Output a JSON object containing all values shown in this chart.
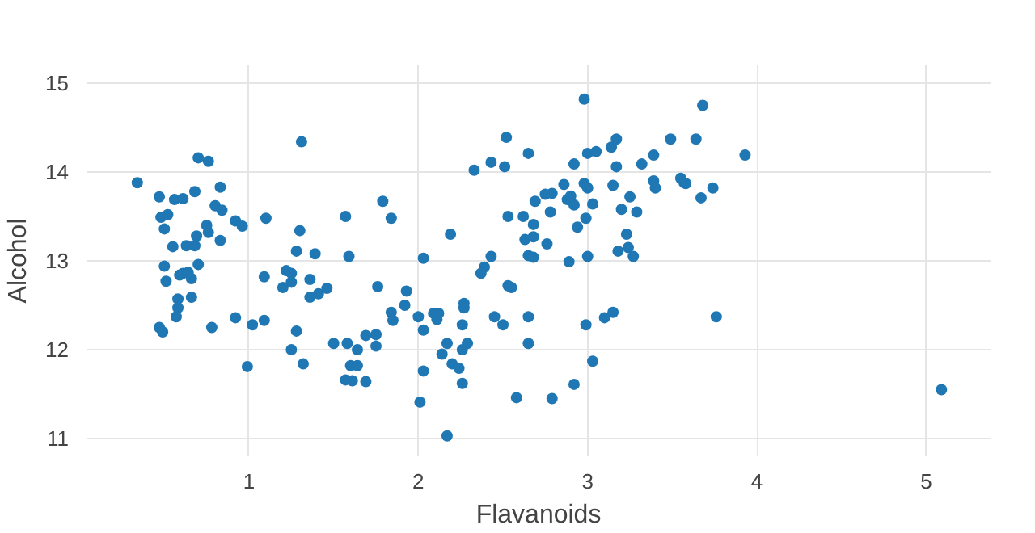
{
  "chart_data": {
    "type": "scatter",
    "xlabel": "Flavanoids",
    "ylabel": "Alcohol",
    "xlim": [
      0.04,
      5.38
    ],
    "ylim": [
      10.8,
      15.2
    ],
    "xticks": [
      1,
      2,
      3,
      4,
      5
    ],
    "yticks": [
      11,
      12,
      13,
      14,
      15
    ],
    "grid": true,
    "marker": "circle",
    "series": [
      {
        "color": "#1f77b4",
        "x": [
          0.7,
          0.76,
          0.34,
          0.47,
          0.56,
          0.61,
          0.68,
          0.83,
          0.48,
          0.52,
          0.5,
          0.75,
          0.8,
          0.84,
          0.92,
          0.96,
          0.76,
          0.55,
          0.63,
          0.68,
          0.69,
          0.83,
          1.1,
          1.3,
          1.28,
          1.39,
          1.57,
          1.79,
          1.84,
          1.59,
          0.5,
          0.61,
          0.7,
          1.09,
          1.22,
          0.59,
          0.64,
          0.66,
          0.51,
          1.25,
          1.2,
          1.25,
          1.36,
          1.36,
          1.41,
          1.46,
          1.76,
          1.93,
          0.58,
          0.58,
          0.57,
          0.66,
          0.92,
          1.02,
          1.09,
          0.78,
          0.47,
          0.49,
          1.28,
          1.25,
          1.32,
          0.99,
          1.5,
          1.58,
          1.64,
          1.69,
          1.75,
          1.75,
          1.6,
          1.64,
          1.57,
          1.61,
          1.69,
          1.84,
          1.85,
          1.92,
          2.98,
          3.68,
          2.52,
          2.43,
          2.65,
          2.51,
          2.33,
          2.92,
          3.0,
          3.05,
          3.14,
          3.17,
          3.49,
          3.64,
          3.39,
          3.32,
          3.17,
          2.86,
          2.98,
          3.0,
          3.15,
          3.39,
          3.4,
          3.55,
          3.57,
          3.67,
          2.69,
          2.75,
          2.79,
          2.9,
          2.88,
          2.92,
          3.03,
          3.25,
          2.78,
          2.53,
          2.62,
          2.68,
          2.99,
          2.94,
          3.2,
          3.29,
          2.19,
          2.68,
          2.63,
          2.76,
          3.23,
          3.24,
          3.18,
          3.27,
          3.0,
          2.65,
          2.68,
          2.89,
          2.03,
          2.43,
          2.39,
          2.37,
          2.0,
          2.03,
          2.09,
          2.12,
          2.11,
          2.27,
          2.27,
          2.26,
          2.53,
          2.55,
          2.45,
          2.5,
          2.65,
          2.65,
          2.17,
          2.14,
          2.29,
          2.26,
          2.2,
          2.24,
          2.26,
          2.03,
          2.01,
          2.17,
          2.58,
          2.79,
          2.92,
          3.03,
          2.99,
          3.1,
          3.15,
          3.93,
          3.58,
          3.74,
          3.76,
          5.09,
          1.31
        ],
        "values": [
          14.16,
          14.12,
          13.88,
          13.72,
          13.69,
          13.7,
          13.78,
          13.83,
          13.49,
          13.52,
          13.36,
          13.4,
          13.62,
          13.57,
          13.45,
          13.39,
          13.32,
          13.16,
          13.17,
          13.17,
          13.28,
          13.23,
          13.48,
          13.34,
          13.11,
          13.08,
          13.5,
          13.67,
          13.48,
          13.05,
          12.94,
          12.86,
          12.96,
          12.82,
          12.89,
          12.84,
          12.87,
          12.8,
          12.77,
          12.86,
          12.7,
          12.76,
          12.79,
          12.59,
          12.63,
          12.69,
          12.71,
          12.66,
          12.57,
          12.47,
          12.37,
          12.59,
          12.36,
          12.28,
          12.33,
          12.25,
          12.25,
          12.2,
          12.21,
          12.0,
          11.84,
          11.81,
          12.07,
          12.07,
          12.0,
          12.16,
          12.17,
          12.04,
          11.82,
          11.82,
          11.66,
          11.65,
          11.64,
          12.42,
          12.33,
          12.5,
          14.82,
          14.75,
          14.39,
          14.11,
          14.21,
          14.06,
          14.02,
          14.09,
          14.21,
          14.23,
          14.28,
          14.37,
          14.37,
          14.37,
          14.19,
          14.09,
          14.06,
          13.86,
          13.87,
          13.82,
          13.85,
          13.9,
          13.82,
          13.93,
          13.88,
          13.71,
          13.67,
          13.75,
          13.76,
          13.73,
          13.69,
          13.63,
          13.64,
          13.72,
          13.55,
          13.5,
          13.5,
          13.41,
          13.48,
          13.38,
          13.58,
          13.55,
          13.3,
          13.27,
          13.24,
          13.19,
          13.3,
          13.15,
          13.11,
          13.05,
          13.05,
          13.06,
          13.04,
          12.99,
          13.03,
          13.05,
          12.93,
          12.86,
          12.37,
          12.22,
          12.41,
          12.41,
          12.34,
          12.52,
          12.47,
          12.28,
          12.72,
          12.7,
          12.37,
          12.28,
          12.37,
          12.07,
          12.07,
          11.95,
          12.07,
          12.0,
          11.84,
          11.79,
          11.62,
          11.76,
          11.41,
          11.03,
          11.46,
          11.45,
          11.61,
          11.87,
          12.28,
          12.36,
          12.42,
          14.19,
          13.87,
          13.82,
          12.37,
          11.55,
          14.34
        ]
      }
    ]
  }
}
